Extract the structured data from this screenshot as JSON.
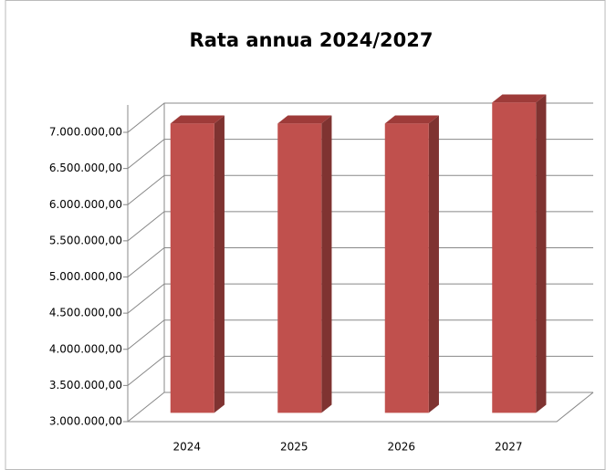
{
  "chart_data": {
    "type": "bar3d",
    "title": "Rata annua 2024/2027",
    "categories": [
      "2024",
      "2025",
      "2026",
      "2027"
    ],
    "values": [
      7000000,
      7000000,
      7000000,
      7290000
    ],
    "color": "#c0504d",
    "ylim": [
      3000000,
      7000000
    ],
    "yticks": [
      {
        "value": 3000000,
        "label": "3.000.000,00"
      },
      {
        "value": 3500000,
        "label": "3.500.000,00"
      },
      {
        "value": 4000000,
        "label": "4.000.000,00"
      },
      {
        "value": 4500000,
        "label": "4.500.000,00"
      },
      {
        "value": 5000000,
        "label": "5.000.000,00"
      },
      {
        "value": 5500000,
        "label": "5.500.000,00"
      },
      {
        "value": 6000000,
        "label": "6.000.000,00"
      },
      {
        "value": 6500000,
        "label": "6.500.000,00"
      },
      {
        "value": 7000000,
        "label": "7.000.000,00"
      }
    ],
    "grid": true
  }
}
